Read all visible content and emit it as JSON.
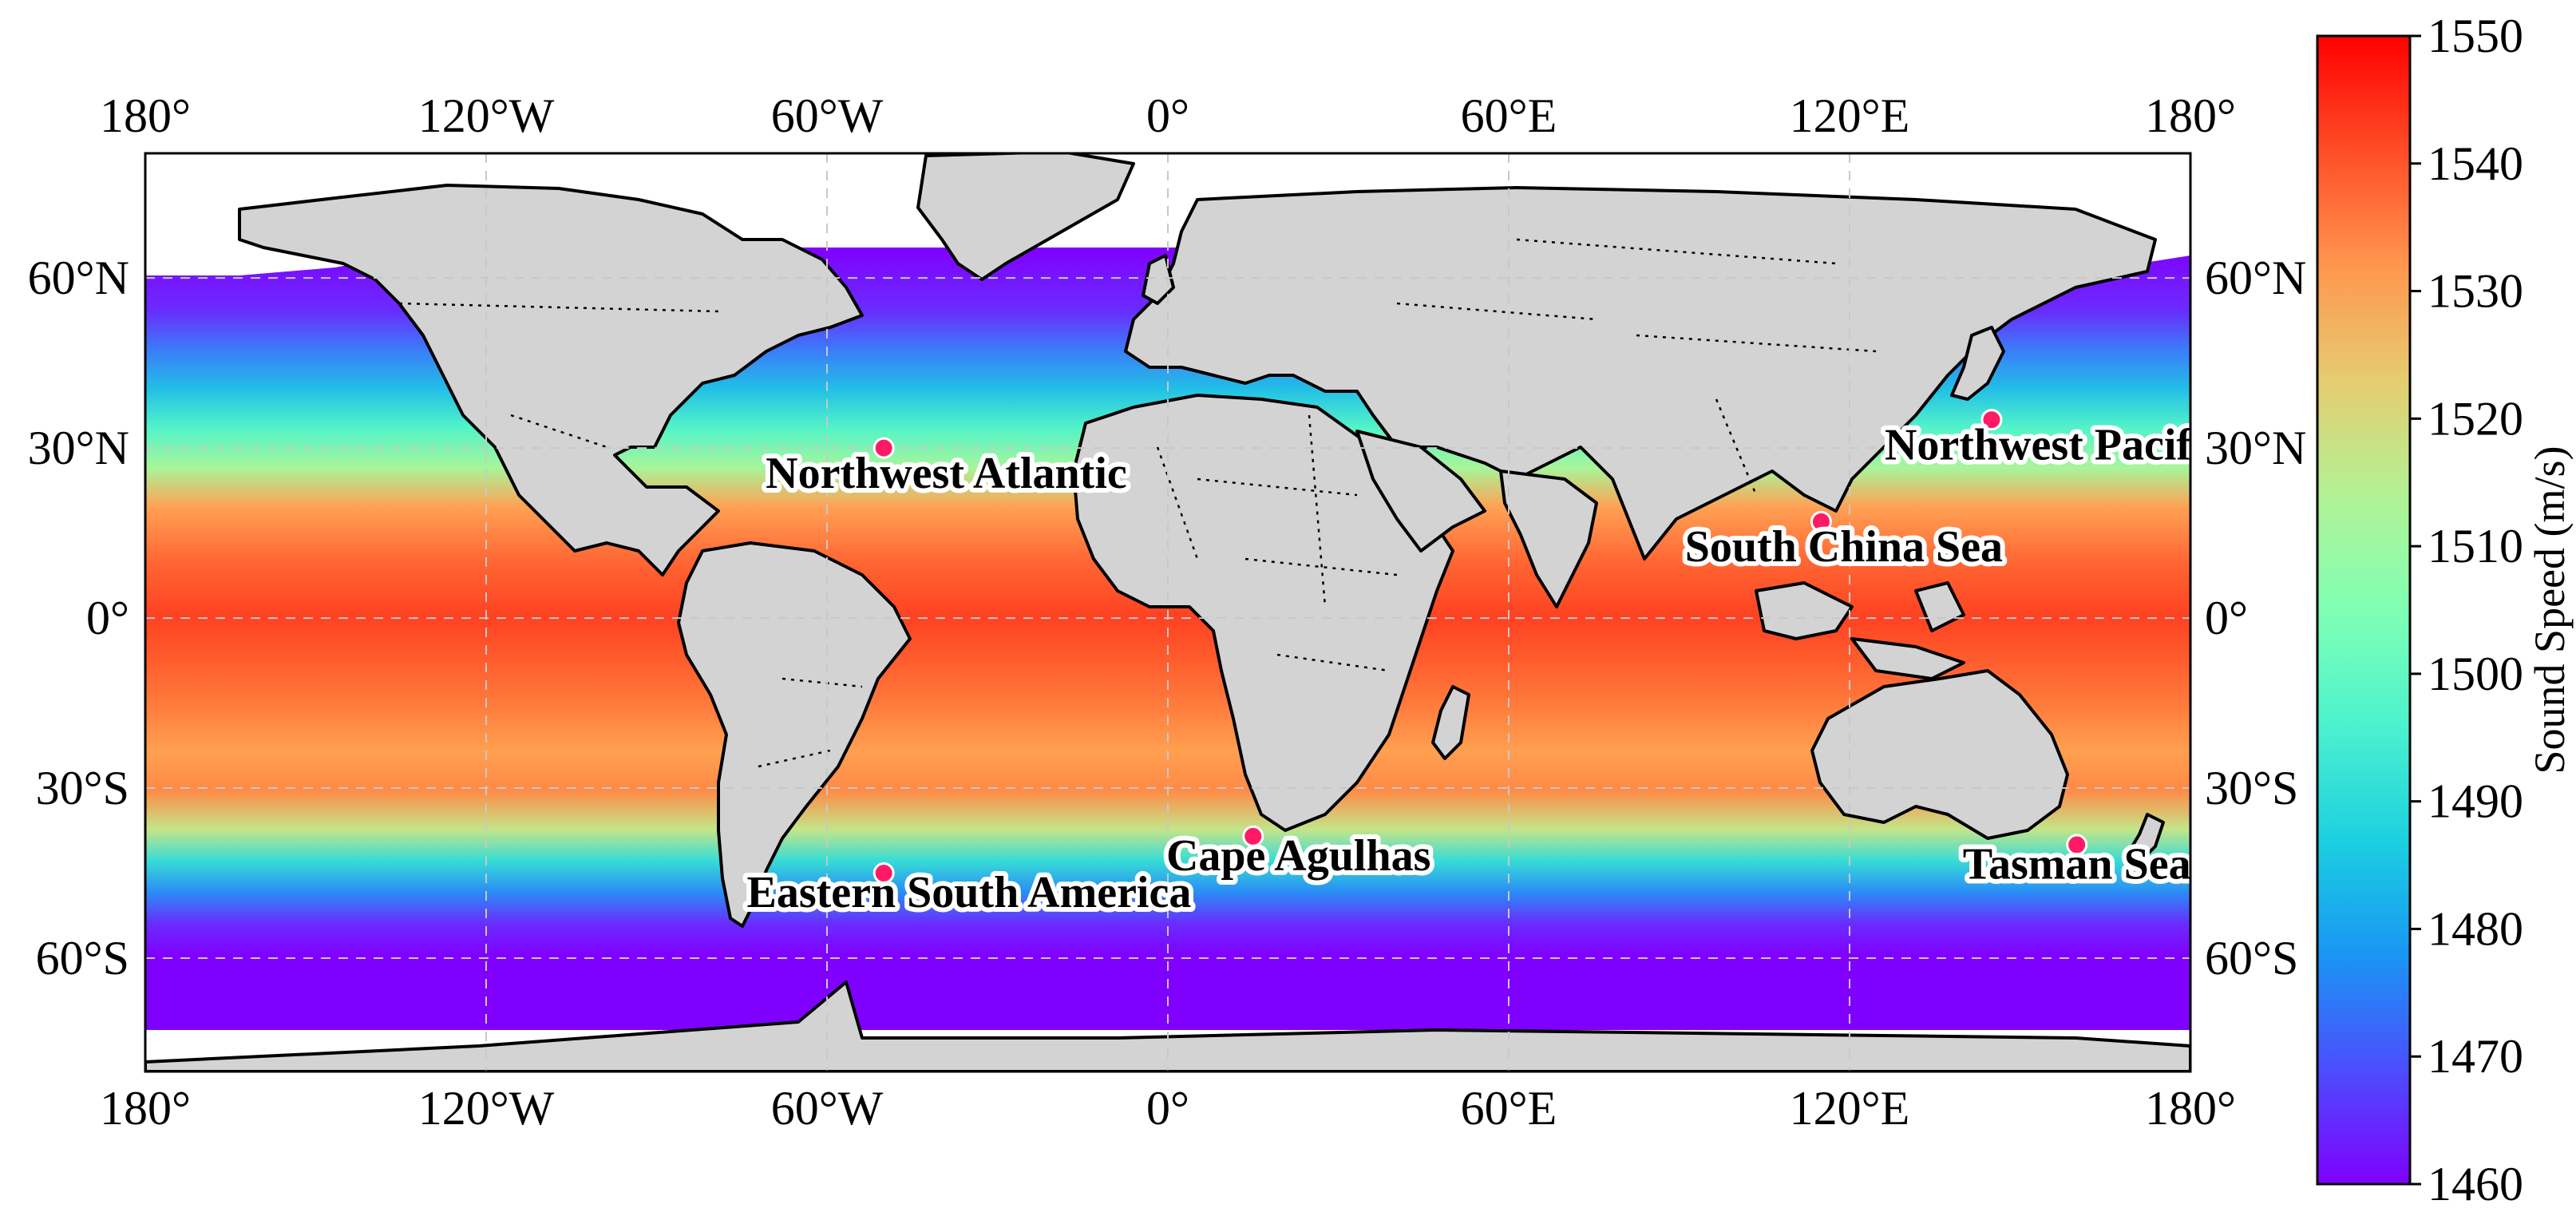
{
  "map": {
    "lon_ticks": [
      "180°",
      "120°W",
      "60°W",
      "0°",
      "60°E",
      "120°E",
      "180°"
    ],
    "lat_ticks": [
      "60°N",
      "30°N",
      "0°",
      "30°S",
      "60°S"
    ],
    "lon_values": [
      -180,
      -120,
      -60,
      0,
      60,
      120,
      180
    ],
    "lat_values": [
      60,
      30,
      0,
      -30,
      -60
    ],
    "extent": {
      "lon": [
        -180,
        180
      ],
      "lat": [
        -80,
        82
      ]
    },
    "land_color": "#d3d3d3",
    "grid": true
  },
  "sites": [
    {
      "name": "Northwest Atlantic",
      "lon": -50,
      "lat": 30,
      "label_anchor": "middle",
      "label_dlon": 11,
      "label_dlat": -7
    },
    {
      "name": "Northwest Pacific",
      "lon": 145,
      "lat": 35,
      "label_anchor": "middle",
      "label_dlon": 11,
      "label_dlat": -7
    },
    {
      "name": "South China Sea",
      "lon": 115,
      "lat": 17,
      "label_anchor": "middle",
      "label_dlon": 4,
      "label_dlat": -7
    },
    {
      "name": "Cape Agulhas",
      "lon": 15,
      "lat": -38.5,
      "label_anchor": "middle",
      "label_dlon": 8,
      "label_dlat": -6
    },
    {
      "name": "Eastern South America",
      "lon": -50,
      "lat": -45,
      "label_anchor": "middle",
      "label_dlon": 15,
      "label_dlat": -6
    },
    {
      "name": "Tasman Sea",
      "lon": 160,
      "lat": -40,
      "label_anchor": "middle",
      "label_dlon": 0,
      "label_dlat": -6
    }
  ],
  "marker_color": "#ff1a66",
  "colorbar": {
    "label": "Sound Speed (m/s)",
    "min": 1460,
    "max": 1550,
    "ticks": [
      "1460",
      "1470",
      "1480",
      "1490",
      "1500",
      "1510",
      "1520",
      "1530",
      "1540",
      "1550"
    ],
    "colormap": "rainbow",
    "colors": [
      "#8000ff",
      "#4b4efd",
      "#1996f3",
      "#1cd0e0",
      "#4cf2ce",
      "#80ffb4",
      "#b2f295",
      "#e6cc70",
      "#ff964f",
      "#ff4d27",
      "#ff0000"
    ]
  }
}
